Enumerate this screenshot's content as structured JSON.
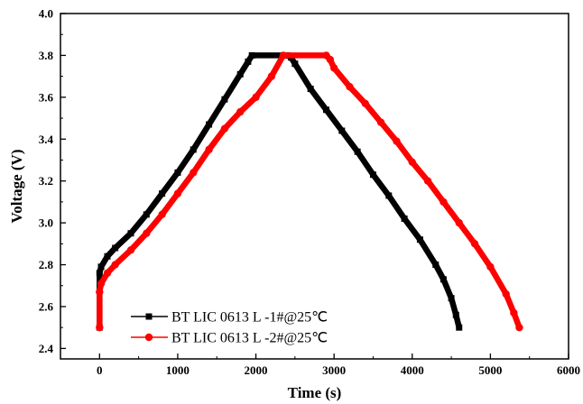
{
  "chart_data": {
    "type": "line",
    "title": "",
    "xlabel": "Time (s)",
    "ylabel": "Voltage (V)",
    "xlim": [
      -500,
      6000
    ],
    "ylim": [
      2.35,
      4.0
    ],
    "xticks": [
      0,
      1000,
      2000,
      3000,
      4000,
      5000,
      6000
    ],
    "yticks": [
      2.4,
      2.6,
      2.8,
      3.0,
      3.2,
      3.4,
      3.6,
      3.8,
      4.0
    ],
    "xtick_labels": [
      "0",
      "1000",
      "2000",
      "3000",
      "4000",
      "5000",
      "6000"
    ],
    "ytick_labels": [
      "2.4",
      "2.6",
      "2.8",
      "3.0",
      "3.2",
      "3.4",
      "3.6",
      "3.8",
      "4.0"
    ],
    "grid": false,
    "legend_position": "bottom-left",
    "series": [
      {
        "name": "BT LIC 0613 L -1#@25℃",
        "color": "#000000",
        "marker": "square",
        "x": [
          0,
          0,
          20,
          100,
          200,
          400,
          600,
          800,
          1000,
          1200,
          1400,
          1600,
          1800,
          1900,
          1950,
          2400,
          2450,
          2500,
          2700,
          2900,
          3100,
          3300,
          3500,
          3700,
          3900,
          4100,
          4300,
          4400,
          4500,
          4560,
          4600
        ],
        "y": [
          2.5,
          2.76,
          2.79,
          2.84,
          2.88,
          2.95,
          3.04,
          3.14,
          3.24,
          3.35,
          3.47,
          3.59,
          3.71,
          3.77,
          3.8,
          3.8,
          3.79,
          3.76,
          3.64,
          3.54,
          3.44,
          3.34,
          3.23,
          3.13,
          3.02,
          2.92,
          2.8,
          2.73,
          2.64,
          2.56,
          2.5
        ]
      },
      {
        "name": "BT LIC 0613 L -2#@25℃",
        "color": "#ff0000",
        "marker": "circle",
        "x": [
          0,
          0,
          20,
          100,
          200,
          400,
          600,
          800,
          1000,
          1200,
          1400,
          1600,
          1800,
          2000,
          2200,
          2350,
          2900,
          2950,
          3000,
          3200,
          3400,
          3600,
          3800,
          4000,
          4200,
          4400,
          4600,
          4800,
          5000,
          5200,
          5300,
          5370
        ],
        "y": [
          2.5,
          2.67,
          2.71,
          2.76,
          2.8,
          2.87,
          2.95,
          3.04,
          3.14,
          3.24,
          3.35,
          3.45,
          3.53,
          3.6,
          3.7,
          3.8,
          3.8,
          3.78,
          3.74,
          3.65,
          3.57,
          3.48,
          3.39,
          3.29,
          3.2,
          3.1,
          3.0,
          2.9,
          2.79,
          2.66,
          2.57,
          2.5
        ]
      }
    ]
  }
}
